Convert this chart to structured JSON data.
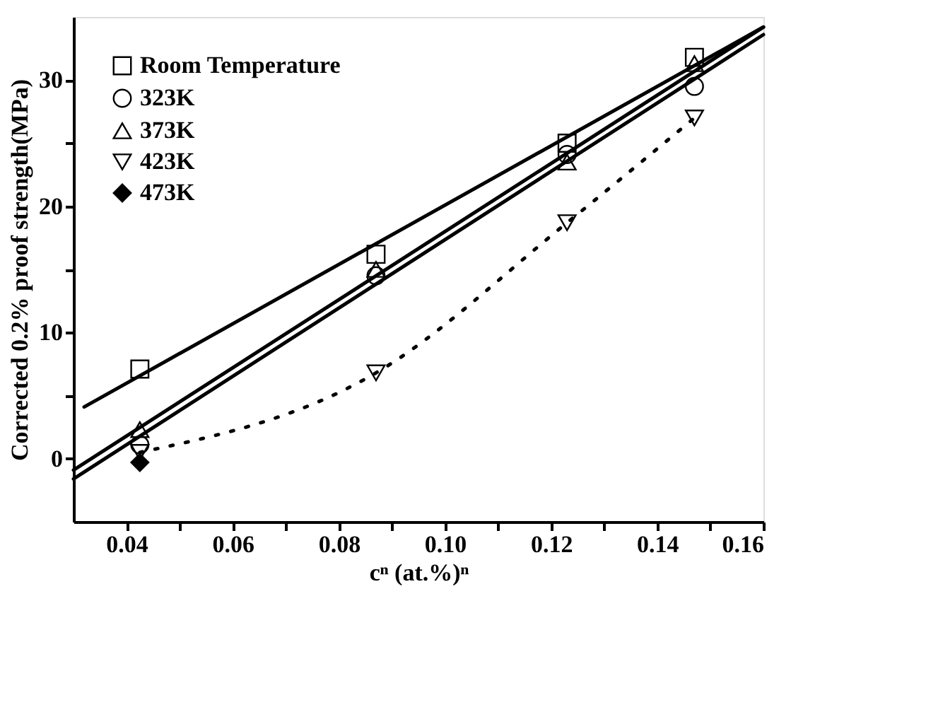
{
  "chart_data": {
    "type": "scatter",
    "xlabel": "cⁿ (at.%)ⁿ",
    "ylabel": "Corrected 0.2% proof strength(MPa)",
    "xlim": [
      0.03,
      0.16
    ],
    "ylim": [
      -5,
      35
    ],
    "xticks": [
      {
        "value": 0.04,
        "label": "0.04"
      },
      {
        "value": 0.05,
        "label": null
      },
      {
        "value": 0.06,
        "label": "0.06"
      },
      {
        "value": 0.07,
        "label": null
      },
      {
        "value": 0.08,
        "label": "0.08"
      },
      {
        "value": 0.09,
        "label": null
      },
      {
        "value": 0.1,
        "label": "0.10"
      },
      {
        "value": 0.11,
        "label": null
      },
      {
        "value": 0.12,
        "label": "0.12"
      },
      {
        "value": 0.13,
        "label": null
      },
      {
        "value": 0.14,
        "label": "0.14"
      },
      {
        "value": 0.15,
        "label": null
      },
      {
        "value": 0.16,
        "label": "0.16"
      }
    ],
    "yticks": [
      0,
      {
        "value": 5,
        "label": null
      },
      10,
      {
        "value": 15,
        "label": null
      },
      20,
      {
        "value": 25,
        "label": null
      },
      30
    ],
    "grid": false,
    "legend": "top left",
    "series": [
      {
        "name": "Room Temperature",
        "marker": "square",
        "color": "#000000",
        "x": [
          0.0425,
          0.087,
          0.123,
          0.147
        ],
        "values": [
          7.1,
          16.2,
          25,
          31.8
        ]
      },
      {
        "name": "323K",
        "marker": "circle",
        "color": "#000000",
        "x": [
          0.0425,
          0.087,
          0.123,
          0.147
        ],
        "values": [
          1.1,
          14.5,
          24.1,
          29.5
        ]
      },
      {
        "name": "373K",
        "marker": "triangle",
        "color": "#000000",
        "x": [
          0.0425,
          0.087,
          0.123,
          0.147
        ],
        "values": [
          2.3,
          15,
          23.5,
          31.3
        ]
      },
      {
        "name": "423K",
        "type": "line",
        "marker": "triangle-down",
        "line_style": "dotted",
        "color": "#000000",
        "x": [
          0.0425,
          0.087,
          0.123,
          0.147
        ],
        "values": [
          0.5,
          6.8,
          18.7,
          27
        ]
      },
      {
        "name": "473K",
        "marker": "diamond",
        "color": "#000000",
        "x": [
          0.0425
        ],
        "values": [
          -0.3
        ]
      },
      {
        "type": "line",
        "marker": "none",
        "line_style": "solid",
        "color": "#000000",
        "x": [
          0.032,
          0.16
        ],
        "values": [
          4.1,
          34.2
        ]
      },
      {
        "type": "line",
        "marker": "none",
        "line_style": "solid",
        "color": "#000000",
        "x": [
          0.03,
          0.16
        ],
        "values": [
          -0.9,
          34.2
        ]
      },
      {
        "type": "line",
        "marker": "none",
        "line_style": "solid",
        "color": "#000000",
        "x": [
          0.03,
          0.16
        ],
        "values": [
          -1.6,
          33.6
        ]
      }
    ]
  }
}
